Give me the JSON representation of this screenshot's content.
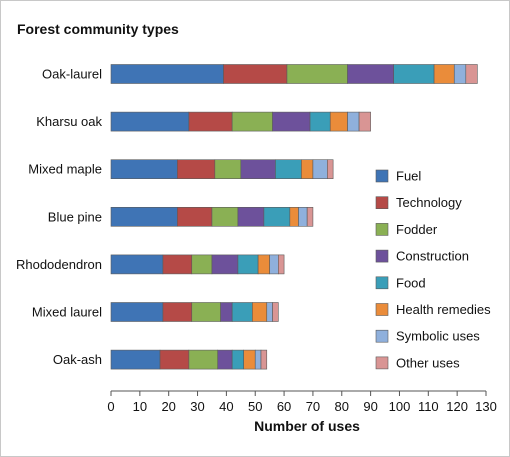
{
  "chart_data": {
    "type": "bar",
    "orientation": "horizontal",
    "stacked": true,
    "title": "Forest community types",
    "xlabel": "Number of uses",
    "ylabel": "",
    "xlim": [
      0,
      130
    ],
    "xticks": [
      0,
      10,
      20,
      30,
      40,
      50,
      60,
      70,
      80,
      90,
      100,
      110,
      120,
      130
    ],
    "grid": false,
    "legend_position": "right",
    "categories": [
      "Oak-laurel",
      "Kharsu oak",
      "Mixed maple",
      "Blue pine",
      "Rhododendron",
      "Mixed laurel",
      "Oak-ash"
    ],
    "series": [
      {
        "name": "Fuel",
        "color": "#3f74b5",
        "values": [
          39,
          27,
          23,
          23,
          18,
          18,
          17
        ]
      },
      {
        "name": "Technology",
        "color": "#b54a47",
        "values": [
          22,
          15,
          13,
          12,
          10,
          10,
          10
        ]
      },
      {
        "name": "Fodder",
        "color": "#8ab054",
        "values": [
          21,
          14,
          9,
          9,
          7,
          10,
          10
        ]
      },
      {
        "name": "Construction",
        "color": "#6d519b",
        "values": [
          16,
          13,
          12,
          9,
          9,
          4,
          5
        ]
      },
      {
        "name": "Food",
        "color": "#3a9eb8",
        "values": [
          14,
          7,
          9,
          9,
          7,
          7,
          4
        ]
      },
      {
        "name": "Health remedies",
        "color": "#ea8c3a",
        "values": [
          7,
          6,
          4,
          3,
          4,
          5,
          4
        ]
      },
      {
        "name": "Symbolic uses",
        "color": "#8fb0dc",
        "values": [
          4,
          4,
          5,
          3,
          3,
          2,
          2
        ]
      },
      {
        "name": "Other uses",
        "color": "#d99594",
        "values": [
          4,
          4,
          2,
          2,
          2,
          2,
          2
        ]
      }
    ]
  }
}
